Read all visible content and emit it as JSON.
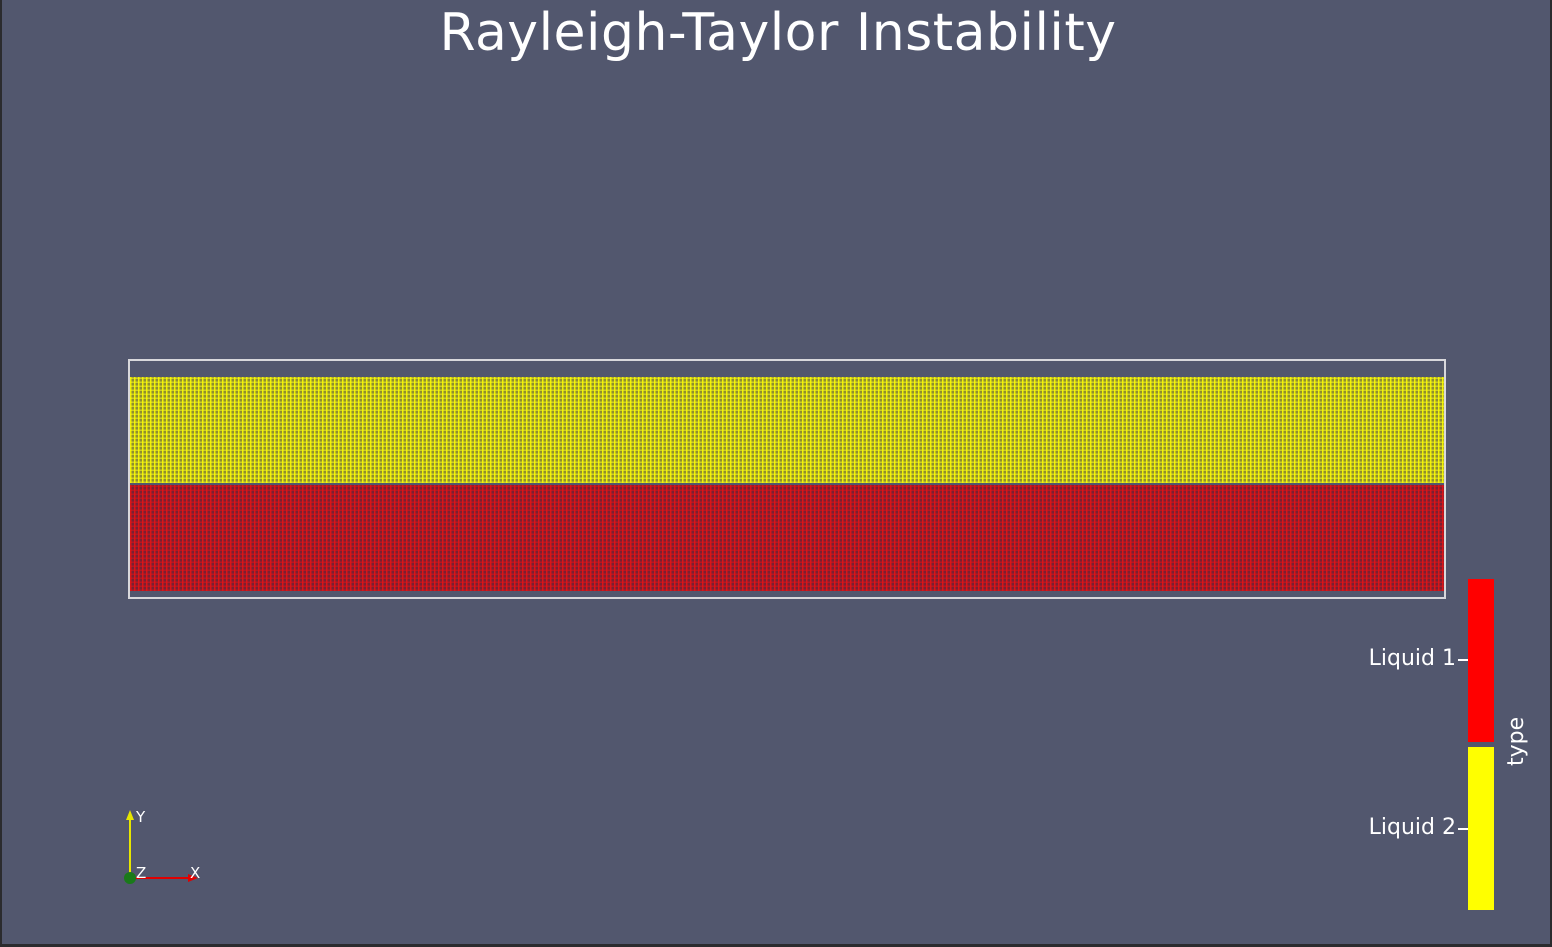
{
  "title": "Rayleigh-Taylor Instability",
  "regions": {
    "upper": {
      "name": "Liquid 2",
      "color": "#ffff00"
    },
    "lower": {
      "name": "Liquid 1",
      "color": "#ff0000"
    }
  },
  "legend": {
    "title": "type",
    "items": [
      {
        "label": "Liquid 1",
        "color": "#ff0000"
      },
      {
        "label": "Liquid 2",
        "color": "#ffff00"
      }
    ]
  },
  "axes": {
    "y_label": "Y",
    "z_label": "Z",
    "x_label": "X",
    "y_color": "#e6e600",
    "x_color": "#e00000",
    "z_color": "#1a7a1a"
  },
  "colors": {
    "background": "#52576e",
    "outline": "#d8d8dc",
    "text": "#ffffff"
  }
}
